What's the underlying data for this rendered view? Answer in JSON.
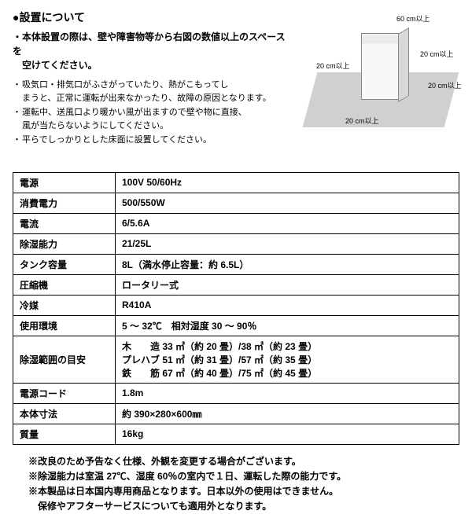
{
  "header": {
    "title": "●設置について",
    "bold_note": "・本体設置の際は、壁や障害物等から右図の数値以上のスペースを\n　空けてください。",
    "bullets": [
      "吸気口・排気口がふさがっていたり、熱がこもってし\nまうと、正常に運転が出来なかったり、故障の原因となります。",
      "運転中、送風口より暖かい風が出ますので壁や物に直接、\n風が当たらないようにしてください。",
      "平らでしっかりとした床面に設置してください。"
    ]
  },
  "diagram": {
    "c_top": "60 cm以上",
    "c_left": "20 cm以上",
    "c_right1": "20 cm以上",
    "c_right2": "20 cm以上",
    "c_bottom": "20 cm以上"
  },
  "spec_table": {
    "rows": [
      {
        "label": "電源",
        "value": "100V 50/60Hz"
      },
      {
        "label": "消費電力",
        "value": "500/550W"
      },
      {
        "label": "電流",
        "value": "6/5.6A"
      },
      {
        "label": "除湿能力",
        "value": "21/25L"
      },
      {
        "label": "タンク容量",
        "value": "8L（満水停止容量：約 6.5L）"
      },
      {
        "label": "圧縮機",
        "value": "ロータリー式"
      },
      {
        "label": "冷媒",
        "value": "R410A"
      },
      {
        "label": "使用環境",
        "value": "5 ～ 32℃　相対湿度 30 ～ 90％"
      },
      {
        "label": "除湿範囲の目安",
        "value": "木　　造 33 ㎡（約 20 畳）/38 ㎡（約 23 畳）\nプレハブ 51 ㎡（約 31 畳）/57 ㎡（約 35 畳）\n鉄　　筋 67 ㎡（約 40 畳）/75 ㎡（約 45 畳）"
      },
      {
        "label": "電源コード",
        "value": "1.8m"
      },
      {
        "label": "本体寸法",
        "value": "約 390×280×600㎜"
      },
      {
        "label": "質量",
        "value": "16kg"
      }
    ]
  },
  "footnotes": {
    "line1": "※改良のため予告なく仕様、外観を変更する場合がございます。",
    "line2": "※除湿能力は室温 27℃、湿度 60％の室内で１日、運転した際の能力です。",
    "line3": "※本製品は日本国内専用商品となります。日本以外の使用はできません。",
    "line3_indent": "保修やアフターサービスについても適用外となります。"
  }
}
